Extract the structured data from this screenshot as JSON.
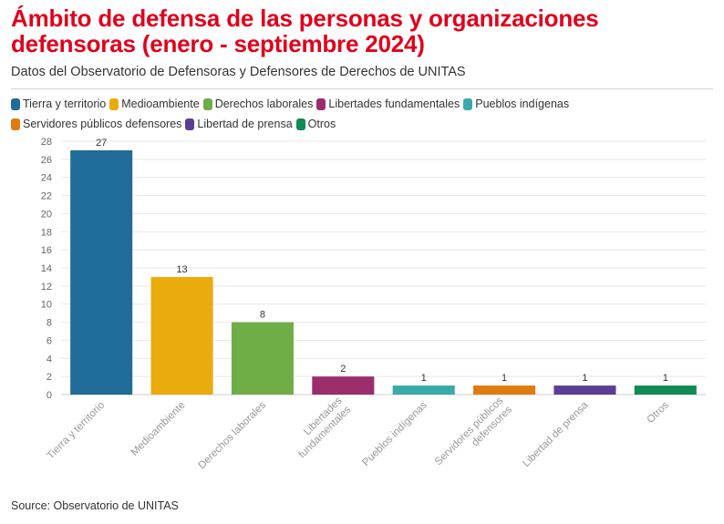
{
  "header": {
    "title": "Ámbito de defensa de las personas y organizaciones defensoras (enero - septiembre 2024)",
    "subtitle": "Datos del Observatorio de Defensoras y Defensores de Derechos de UNITAS"
  },
  "legend": [
    {
      "label": "Tierra y territorio",
      "color": "#1f6b99"
    },
    {
      "label": "Medioambiente",
      "color": "#eaab0c"
    },
    {
      "label": "Derechos laborales",
      "color": "#6fad47"
    },
    {
      "label": "Libertades fundamentales",
      "color": "#9b2d6d"
    },
    {
      "label": "Pueblos indígenas",
      "color": "#3aaaa8"
    },
    {
      "label": "Servidores públicos defensores",
      "color": "#e07b10"
    },
    {
      "label": "Libertad de prensa",
      "color": "#5b3f94"
    },
    {
      "label": "Otros",
      "color": "#118a55"
    }
  ],
  "chart_data": {
    "type": "bar",
    "categories": [
      "Tierra y territorio",
      "Medioambiente",
      "Derechos laborales",
      "Libertades fundamentales",
      "Pueblos indígenas",
      "Servidores públicos defensores",
      "Libertad de prensa",
      "Otros"
    ],
    "values": [
      27,
      13,
      8,
      2,
      1,
      1,
      1,
      1
    ],
    "colors": [
      "#1f6b99",
      "#eaab0c",
      "#6fad47",
      "#9b2d6d",
      "#3aaaa8",
      "#e07b10",
      "#5b3f94",
      "#118a55"
    ],
    "y_ticks": [
      "0",
      "2",
      "4",
      "6",
      "8",
      "10",
      "12",
      "14",
      "16",
      "18",
      "20",
      "22",
      "24",
      "26",
      "28"
    ],
    "ylim": [
      0,
      28
    ],
    "grid": true,
    "legend_position": "top-left"
  },
  "footer": {
    "source": "Source: Observatorio de UNITAS"
  }
}
